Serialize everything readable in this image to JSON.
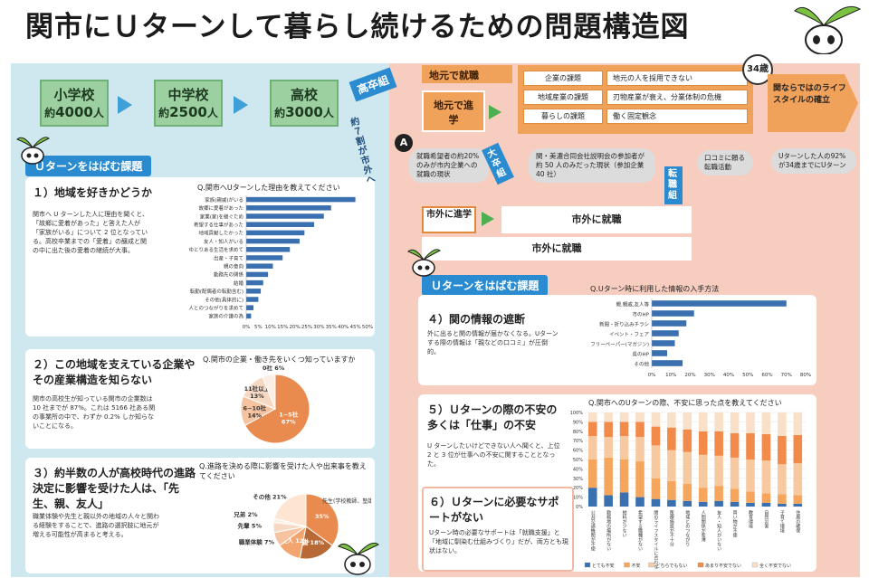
{
  "title": "関市にＵターンして暮らし続けるための問題構造図",
  "schools": [
    {
      "name": "小学校",
      "count_prefix": "約",
      "count": "4000",
      "count_suffix": "人"
    },
    {
      "name": "中学校",
      "count_prefix": "約",
      "count": "2500",
      "count_suffix": "人"
    },
    {
      "name": "高校",
      "count_prefix": "約",
      "count": "3000",
      "count_suffix": "人"
    }
  ],
  "left_ribbon": "Ｕターンをはばむ課題",
  "right_ribbon": "Ｕターンをはばむ課題",
  "issues": {
    "i1": {
      "title": "１）地域を好きかどうか",
      "text": "関市へ U ターンした人に理由を聞くと、「故郷に愛着があった」と答えた人が「家族がいる」について 2 位となっている。高校卒業までの「愛着」の醸成と関の中に出た後の愛着の継続が大事。",
      "chart_title": "Q.関市へUターンした理由を教えてください"
    },
    "i2": {
      "title": "２）この地域を支えている企業やその産業構造を知らない",
      "text": "関市の高校生が知っている関市の企業数は 10 社までが 87%。これは 5166 社ある関の事業所の中で、わずか 0.2% しか知らないことになる。",
      "chart_title": "Q.関市の企業・働き先をいくつ知っていますか"
    },
    "i3": {
      "title": "３）約半数の人が高校時代の進路決定に影響を受けた人は、「先生、親、友人」",
      "text": "職業体験や先生と親以外の地域の人々と関わる経験をすることで、進路の選択肢に地元が増える可能性が高まると考える。",
      "chart_title": "Q.進路を決める際に影響を受けた人や出来事を教えてください"
    },
    "i4": {
      "title": "４）関の情報の遮断",
      "text": "外に出ると関の情報が届かなくなる。Uターンする際の情報は「親などの口コミ」が圧倒的。",
      "chart_title": "Q.Uターン時に利用した情報の入手方法"
    },
    "i5": {
      "title": "５）Ｕターンの際の不安の多くは「仕事」の不安",
      "text": "U ターンしたいけどできない人へ聞くと、上位 2 と 3 位が仕事への不安に関することとなった。",
      "chart_title": "Q.関市へのUターンの際、不安に思った点を教えてください"
    },
    "i6": {
      "title": "６）Ｕターンに必要なサポートがない",
      "text": "Uターン時の必要なサポートは「就職支援」と「地域に馴染む仕組みづくり」だが、両方とも現状はない。"
    }
  },
  "flow": {
    "highschool_grads": "高卒組",
    "go_out": "約７割が市外へ",
    "local_job": "地元で就職",
    "local_study": "地元で進学",
    "university_grads": "大卒組",
    "job_changers": "転職組",
    "outside_study": "市外に進学",
    "outside_job": "市外に就職",
    "outside_job2": "市外に就職",
    "age_badge": "34歳",
    "lifestyle": "関ならではのライフスタイルの確立",
    "marker": "A",
    "issues_rows": [
      {
        "label": "企業の課題",
        "value": "地元の人を採用できない"
      },
      {
        "label": "地域産業の課題",
        "value": "刃物産業が衰え、分業体制の危機"
      },
      {
        "label": "暮らしの課題",
        "value": "働く固定観念"
      }
    ],
    "cloud1": "就職希望者の約20%のみが市内企業への就職の現状",
    "cloud2": "関・美濃合同会社説明会の参加者が約 50 人のみだった現状（参加企業 40 社）",
    "cloud3": "口コミに頼る転職活動",
    "uturn_note": "Uターンした人の92%が34歳までにUターン"
  },
  "chart_data": [
    {
      "type": "bar",
      "title": "Q.関市へUターンした理由を教えてください",
      "categories": [
        "家族(親戚)がいる",
        "故郷に愛着があった",
        "家業(家)を継ぐため",
        "希望する仕事があった",
        "地域貢献したかった",
        "友人・知人がいる",
        "ゆとりある生活を求めて",
        "出産・子育て",
        "親の意向",
        "勤務先の関係",
        "結婚",
        "転勤(配偶者の転勤含む)",
        "その他(具体的に)",
        "人とのつながりを求めて",
        "家族の介護の為"
      ],
      "values": [
        45,
        35,
        32,
        28,
        24,
        22,
        18,
        15,
        11,
        9,
        7,
        6,
        5,
        3,
        2
      ],
      "xticks": [
        "0%",
        "5%",
        "10%",
        "15%",
        "20%",
        "25%",
        "30%",
        "35%",
        "40%",
        "45%",
        "50%"
      ],
      "xlim": [
        0,
        50
      ]
    },
    {
      "type": "pie",
      "title": "Q.関市の企業・働き先をいくつ知っていますか",
      "labels": [
        "1~5社",
        "6~10社",
        "11社以上",
        "0社"
      ],
      "values": [
        67,
        14,
        13,
        6
      ],
      "display": [
        "1~5社\n67%",
        "6~10社\n14%",
        "11社以上\n13%",
        "0社 6%"
      ]
    },
    {
      "type": "pie",
      "title": "Q.進路を決める際に影響を受けた人や出来事を教えてください",
      "labels": [
        "先生(学校教師、塾講師)",
        "親",
        "友人",
        "職業体験",
        "先輩",
        "兄弟",
        "その他"
      ],
      "values": [
        35,
        18,
        12,
        7,
        5,
        2,
        21
      ],
      "display": [
        "35%",
        "親 18%",
        "友人 12%",
        "職業体験 7%",
        "先輩 5%",
        "兄弟 2%",
        "その他 21%"
      ]
    },
    {
      "type": "bar",
      "title": "Q.Uターン時に利用した情報の入手方法",
      "categories": [
        "親,親戚,友人等",
        "市のHP",
        "新聞・折り込みチラシ",
        "イベント・フェア",
        "フリーペーパー(マガジン)",
        "県のHP",
        "その他"
      ],
      "values": [
        70,
        22,
        18,
        14,
        12,
        8,
        16
      ],
      "xticks": [
        "0%",
        "10%",
        "20%",
        "30%",
        "40%",
        "50%",
        "60%",
        "70%",
        "80%"
      ],
      "xlim": [
        0,
        80
      ]
    },
    {
      "type": "bar",
      "title": "Q.関市へのUターンの際、不安に思った点を教えてください",
      "categories": [
        "公共交通機関が不便",
        "勤務地の場所がない",
        "給料が少ない",
        "希望する職種がない",
        "関のライフスタイルに合わない",
        "医療施設が不十分",
        "地域とのつながり",
        "人間関係が希薄",
        "友人・知人がいない",
        "買い物が不便",
        "教育環境",
        "自然災害",
        "子育て環境",
        "住居の確保"
      ],
      "series": [
        {
          "name": "とても不安",
          "values": [
            20,
            12,
            15,
            10,
            8,
            7,
            6,
            5,
            6,
            5,
            4,
            4,
            3,
            3
          ]
        },
        {
          "name": "不安",
          "values": [
            30,
            40,
            35,
            38,
            22,
            20,
            18,
            15,
            16,
            14,
            12,
            10,
            10,
            9
          ]
        },
        {
          "name": "どちらでもない",
          "values": [
            25,
            22,
            25,
            26,
            35,
            33,
            34,
            35,
            32,
            33,
            34,
            35,
            32,
            34
          ]
        },
        {
          "name": "あまり不安でない",
          "values": [
            15,
            16,
            15,
            16,
            20,
            24,
            24,
            25,
            26,
            26,
            28,
            28,
            30,
            30
          ]
        },
        {
          "name": "全く不安でない",
          "values": [
            10,
            10,
            10,
            10,
            15,
            16,
            18,
            20,
            20,
            22,
            22,
            23,
            25,
            24
          ]
        }
      ],
      "colors": [
        "#3a6fb0",
        "#f6a65c",
        "#f7c9a0",
        "#f28a4a",
        "#f9e0c8"
      ],
      "yticks": [
        "0%",
        "10%",
        "20%",
        "30%",
        "40%",
        "50%",
        "60%",
        "70%",
        "80%",
        "90%",
        "100%"
      ]
    }
  ]
}
